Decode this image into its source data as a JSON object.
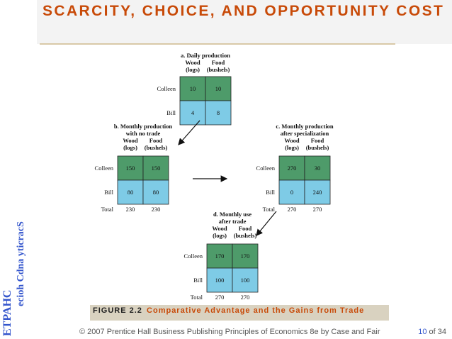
{
  "slide": {
    "title": "SCARCITY, CHOICE, AND OPPORTUNITY COST",
    "side_line1": "ETPAHC",
    "side_line2": "ecioh Cdna yticracS",
    "figure_label": "FIGURE 2.2",
    "figure_title": "Comparative Advantage and the Gains from Trade",
    "footer": "© 2007 Prentice Hall Business Publishing   Principles of Economics 8e by Case and Fair",
    "page_current": "10",
    "page_sep": " of ",
    "page_total": "34"
  },
  "colors": {
    "green": "#4e9b6a",
    "blue": "#7ecbe6",
    "title": "#c84a08",
    "side": "#3355cc"
  },
  "panels": {
    "a": {
      "heading": [
        "a. Daily production"
      ],
      "col1": [
        "Wood",
        "(logs)"
      ],
      "col2": [
        "Food",
        "(bushels)"
      ],
      "rows": [
        {
          "name": "Colleen",
          "wood": "10",
          "food": "10"
        },
        {
          "name": "Bill",
          "wood": "4",
          "food": "8"
        }
      ]
    },
    "b": {
      "heading": [
        "b. Monthly production",
        "with no trade"
      ],
      "col1": [
        "Wood",
        "(logs)"
      ],
      "col2": [
        "Food",
        "(bushels)"
      ],
      "rows": [
        {
          "name": "Colleen",
          "wood": "150",
          "food": "150"
        },
        {
          "name": "Bill",
          "wood": "80",
          "food": "80"
        }
      ],
      "total": {
        "name": "Total",
        "wood": "230",
        "food": "230"
      }
    },
    "c": {
      "heading": [
        "c. Monthly production",
        "after specialization"
      ],
      "col1": [
        "Wood",
        "(logs)"
      ],
      "col2": [
        "Food",
        "(bushels)"
      ],
      "rows": [
        {
          "name": "Colleen",
          "wood": "270",
          "food": "30"
        },
        {
          "name": "Bill",
          "wood": "0",
          "food": "240"
        }
      ],
      "total": {
        "name": "Total",
        "wood": "270",
        "food": "270"
      }
    },
    "d": {
      "heading": [
        "d. Monthly use",
        "after trade"
      ],
      "col1": [
        "Wood",
        "(logs)"
      ],
      "col2": [
        "Food",
        "(bushels)"
      ],
      "rows": [
        {
          "name": "Colleen",
          "wood": "170",
          "food": "170"
        },
        {
          "name": "Bill",
          "wood": "100",
          "food": "100"
        }
      ],
      "total": {
        "name": "Total",
        "wood": "270",
        "food": "270"
      }
    }
  }
}
